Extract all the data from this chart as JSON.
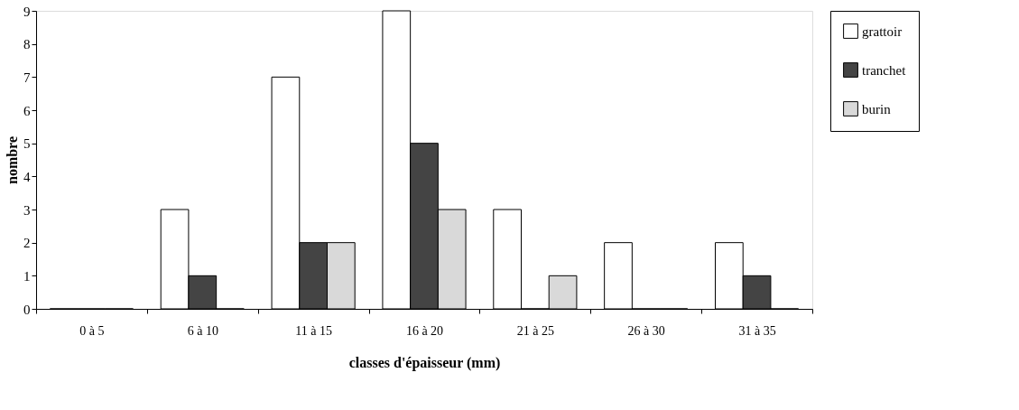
{
  "chart_data": {
    "type": "bar",
    "xlabel": "classes  d'épaisseur  (mm)",
    "ylabel": "nombre",
    "categories": [
      "0 à 5",
      "6 à 10",
      "11 à 15",
      "16 à 20",
      "21 à 25",
      "26 à 30",
      "31 à 35"
    ],
    "series": [
      {
        "name": "grattoir",
        "color": "#ffffff",
        "values": [
          0,
          3,
          7,
          9,
          3,
          2,
          2
        ]
      },
      {
        "name": "tranchet",
        "color": "#444444",
        "values": [
          0,
          1,
          2,
          5,
          0,
          0,
          1
        ]
      },
      {
        "name": "burin",
        "color": "#d9d9d9",
        "values": [
          0,
          0,
          2,
          3,
          1,
          0,
          0
        ]
      }
    ],
    "ylim": [
      0,
      9
    ],
    "yticks": [
      0,
      1,
      2,
      3,
      4,
      5,
      6,
      7,
      8,
      9
    ],
    "grid": false,
    "legend": "right"
  }
}
